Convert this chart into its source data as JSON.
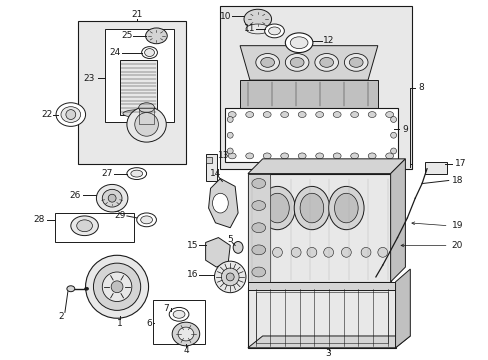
{
  "bg": "#ffffff",
  "lc": "#1a1a1a",
  "shade1": "#e8e8e8",
  "shade2": "#d4d4d4",
  "shade3": "#c0c0c0",
  "fig_w": 4.89,
  "fig_h": 3.6,
  "dpi": 100
}
